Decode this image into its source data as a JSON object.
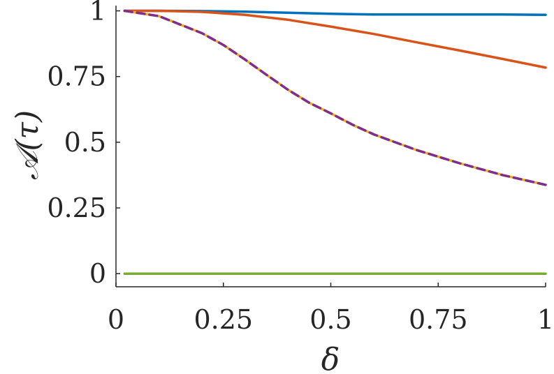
{
  "chart_data": {
    "type": "line",
    "title": "",
    "xlabel": "δ",
    "ylabel": "𝒜(τ)",
    "xlim": [
      0,
      1
    ],
    "ylim": [
      -0.05,
      1.02
    ],
    "x_ticks": [
      0,
      0.25,
      0.5,
      0.75,
      1
    ],
    "x_tick_labels": [
      "0",
      "0.25",
      "0.5",
      "0.75",
      "1"
    ],
    "y_ticks": [
      0,
      0.25,
      0.5,
      0.75,
      1
    ],
    "y_tick_labels": [
      "0",
      "0.25",
      "0.5",
      "0.75",
      "1"
    ],
    "grid": false,
    "legend": "none",
    "series": [
      {
        "color": "#0072BD",
        "dash": "solid",
        "x": [
          0.02,
          0.1,
          0.2,
          0.3,
          0.4,
          0.5,
          0.6,
          0.7,
          0.8,
          0.9,
          1.0
        ],
        "y": [
          1.0,
          1.0,
          0.999,
          0.997,
          0.993,
          0.989,
          0.986,
          0.986,
          0.986,
          0.986,
          0.985
        ]
      },
      {
        "color": "#D95319",
        "dash": "solid",
        "x": [
          0.02,
          0.1,
          0.2,
          0.3,
          0.4,
          0.5,
          0.6,
          0.7,
          0.8,
          0.9,
          1.0
        ],
        "y": [
          1.0,
          1.0,
          0.996,
          0.985,
          0.966,
          0.94,
          0.912,
          0.88,
          0.849,
          0.817,
          0.784
        ]
      },
      {
        "color": "#EDB120",
        "dash": "solid",
        "x": [
          0.02,
          0.1,
          0.2,
          0.25,
          0.3,
          0.35,
          0.4,
          0.45,
          0.5,
          0.55,
          0.6,
          0.7,
          0.8,
          0.9,
          1.0
        ],
        "y": [
          1.0,
          0.98,
          0.915,
          0.87,
          0.815,
          0.757,
          0.7,
          0.65,
          0.61,
          0.567,
          0.53,
          0.47,
          0.42,
          0.375,
          0.338
        ]
      },
      {
        "color": "#7E2F8E",
        "dash": "dashed",
        "x": [
          0.02,
          0.1,
          0.2,
          0.25,
          0.3,
          0.35,
          0.4,
          0.45,
          0.5,
          0.55,
          0.6,
          0.7,
          0.8,
          0.9,
          1.0
        ],
        "y": [
          1.0,
          0.98,
          0.915,
          0.87,
          0.815,
          0.757,
          0.7,
          0.65,
          0.61,
          0.567,
          0.53,
          0.47,
          0.42,
          0.375,
          0.338
        ]
      },
      {
        "color": "#77AC30",
        "dash": "solid",
        "x": [
          0.02,
          1.0
        ],
        "y": [
          0.0,
          0.0
        ]
      }
    ]
  }
}
